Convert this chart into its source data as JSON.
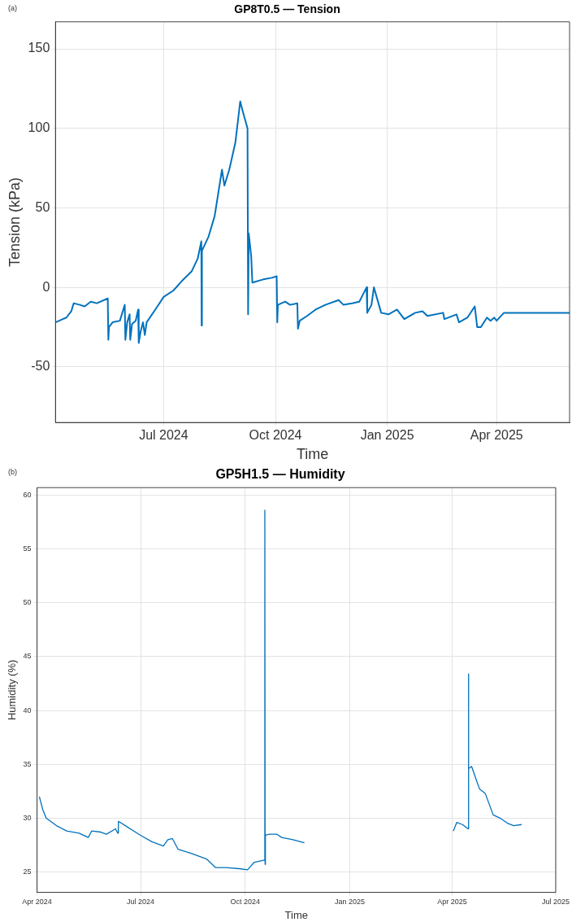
{
  "chart_data": [
    {
      "type": "line",
      "title": "GP8T0.5 — Tension",
      "xlabel": "Time",
      "ylabel": "Tension (kPa)",
      "annotations": [
        "(a)"
      ],
      "xlim": [
        "2024-04-03",
        "2025-05-31"
      ],
      "ylim": [
        -85,
        167
      ],
      "xticks": [
        {
          "value": "2024-07-01",
          "label": "Jul 2024"
        },
        {
          "value": "2024-10-01",
          "label": "Oct 2024"
        },
        {
          "value": "2025-01-01",
          "label": "Jan 2025"
        },
        {
          "value": "2025-04-01",
          "label": "Apr 2025"
        }
      ],
      "yticks": [
        -50,
        0,
        50,
        100,
        150
      ],
      "grid": true,
      "legend": false,
      "series": [
        {
          "color": "#0072bd",
          "x": [
            "2024-04-03",
            "2024-04-09",
            "2024-04-12",
            "2024-04-16",
            "2024-04-18",
            "2024-04-23",
            "2024-04-27",
            "2024-05-02",
            "2024-05-07",
            "2024-05-16",
            "2024-05-16T12:00",
            "2024-05-17",
            "2024-05-20",
            "2024-05-26",
            "2024-05-30",
            "2024-05-30T12:00",
            "2024-06-01",
            "2024-06-03",
            "2024-06-03T12:00",
            "2024-06-05",
            "2024-06-08",
            "2024-06-10",
            "2024-06-10T12:00",
            "2024-06-12",
            "2024-06-14",
            "2024-06-15T12:00",
            "2024-06-17",
            "2024-06-25",
            "2024-07-01",
            "2024-07-09",
            "2024-07-16",
            "2024-07-24",
            "2024-07-29",
            "2024-08-01",
            "2024-08-01T06:00",
            "2024-08-01T12:00",
            "2024-08-07",
            "2024-08-12",
            "2024-08-18",
            "2024-08-20",
            "2024-08-24",
            "2024-08-29",
            "2024-09-02",
            "2024-09-04",
            "2024-09-08",
            "2024-09-08T12:00",
            "2024-09-09",
            "2024-09-11",
            "2024-09-12",
            "2024-09-21",
            "2024-09-28",
            "2024-10-02",
            "2024-10-02T12:00",
            "2024-10-03",
            "2024-10-09",
            "2024-10-13",
            "2024-10-19",
            "2024-10-19T12:00",
            "2024-10-21",
            "2024-10-27",
            "2024-11-03",
            "2024-11-11",
            "2024-11-22",
            "2024-11-26",
            "2024-12-03",
            "2024-12-09",
            "2024-12-15",
            "2024-12-15T12:00",
            "2024-12-19",
            "2024-12-21",
            "2024-12-27",
            "2025-01-02",
            "2025-01-09",
            "2025-01-15",
            "2025-01-24",
            "2025-01-30",
            "2025-02-03",
            "2025-02-16",
            "2025-02-17",
            "2025-02-27",
            "2025-03-01",
            "2025-03-08",
            "2025-03-14",
            "2025-03-16",
            "2025-03-19",
            "2025-03-24",
            "2025-03-27",
            "2025-03-30",
            "2025-04-01",
            "2025-04-07",
            "2025-05-31"
          ],
          "values": [
            -22,
            -20,
            -19,
            -15,
            -10,
            -11,
            -12,
            -9,
            -10,
            -7,
            -33,
            -25,
            -22,
            -21,
            -11,
            -33,
            -22,
            -17,
            -33,
            -23,
            -21,
            -14,
            -35,
            -28,
            -22,
            -30,
            -22,
            -13,
            -6,
            -2,
            4,
            10,
            18,
            29,
            -24,
            23,
            32,
            45,
            74,
            64,
            74,
            91,
            117,
            111,
            100,
            -17,
            34,
            20,
            3,
            5,
            6,
            7,
            -22,
            -11,
            -9,
            -11,
            -10,
            -26,
            -21,
            -18,
            -14,
            -11,
            -8,
            -11,
            -10,
            -9,
            0,
            -16,
            -11,
            0,
            -16,
            -17,
            -14,
            -20,
            -16,
            -15,
            -18,
            -16,
            -20,
            -17,
            -22,
            -19,
            -12,
            -25,
            -25,
            -19,
            -21,
            -19,
            -21,
            -16,
            -16
          ]
        }
      ]
    },
    {
      "type": "line",
      "title": "GP5H1.5 — Humidity",
      "xlabel": "Time",
      "ylabel": "Humidity (%)",
      "annotations": [
        "(b)"
      ],
      "xlim": [
        "2024-04-01",
        "2025-07-01"
      ],
      "ylim": [
        23.1,
        60.7
      ],
      "xticks": [
        {
          "value": "2024-04-01",
          "label": "Apr 2024"
        },
        {
          "value": "2024-07-01",
          "label": "Jul 2024"
        },
        {
          "value": "2024-10-01",
          "label": "Oct 2024"
        },
        {
          "value": "2025-01-01",
          "label": "Jan 2025"
        },
        {
          "value": "2025-04-01",
          "label": "Apr 2025"
        },
        {
          "value": "2025-07-01",
          "label": "Jul 2025"
        }
      ],
      "yticks": [
        25,
        30,
        35,
        40,
        45,
        50,
        55,
        60
      ],
      "grid": true,
      "legend": false,
      "series": [
        {
          "color": "#0072bd",
          "x": [
            "2024-04-03",
            "2024-04-06",
            "2024-04-09",
            "2024-04-18",
            "2024-04-27",
            "2024-05-08",
            "2024-05-16",
            "2024-05-19",
            "2024-05-27",
            "2024-06-01",
            "2024-06-09",
            "2024-06-11",
            "2024-06-11T12:00",
            "2024-06-19",
            "2024-07-01",
            "2024-07-11",
            "2024-07-21",
            "2024-07-25",
            "2024-07-29",
            "2024-08-03",
            "2024-08-15",
            "2024-08-28",
            "2024-09-05",
            "2024-09-14",
            "2024-09-26",
            "2024-10-03",
            "2024-10-09",
            "2024-10-18",
            "2024-10-18T06:00",
            "2024-10-18T12:00",
            "2024-10-18T18:00",
            "2024-10-22",
            "2024-10-29",
            "2024-11-02",
            "2024-11-12",
            "2024-11-22",
            "2025-01-15",
            "2025-04-02",
            "2025-04-05",
            "2025-04-10",
            "2025-04-15",
            "2025-04-15T06:00",
            "2025-04-15T12:00",
            "2025-04-18",
            "2025-04-22",
            "2025-04-25",
            "2025-04-30",
            "2025-05-07",
            "2025-05-13",
            "2025-05-20",
            "2025-05-25",
            "2025-06-01"
          ],
          "values": [
            32,
            30.8,
            30,
            29.3,
            28.8,
            28.6,
            28.2,
            28.8,
            28.7,
            28.5,
            29,
            28.6,
            29.7,
            29.2,
            28.4,
            27.8,
            27.4,
            28,
            28.1,
            27.1,
            26.7,
            26.2,
            25.4,
            25.4,
            25.3,
            25.2,
            25.9,
            26.1,
            58.6,
            25.7,
            28.4,
            28.5,
            28.5,
            28.2,
            28,
            27.7,
            null,
            28.8,
            29.6,
            29.4,
            29,
            43.4,
            34.6,
            34.8,
            33.6,
            32.7,
            32.3,
            30.3,
            30,
            29.5,
            29.3,
            29.4
          ]
        }
      ]
    }
  ]
}
